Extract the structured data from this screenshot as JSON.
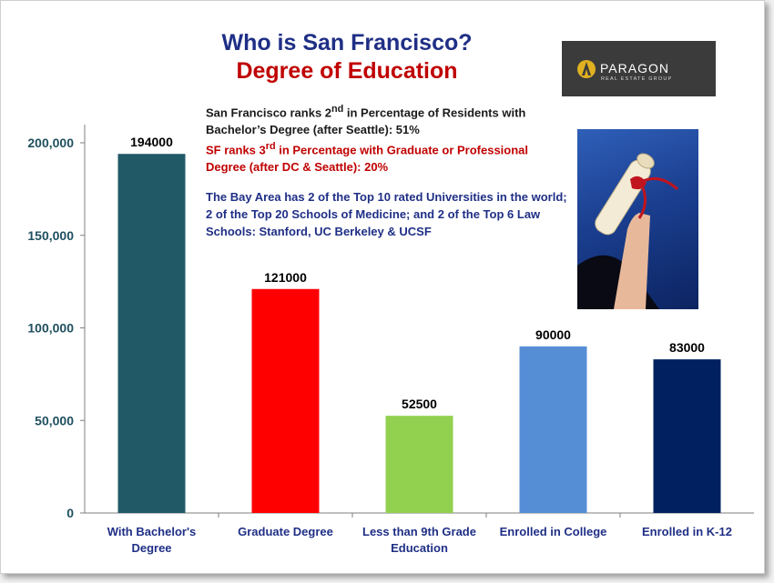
{
  "title": "Who is San Francisco?",
  "subtitle": "Degree of Education",
  "logo": {
    "name": "PARAGON",
    "tagline": "REAL ESTATE GROUP"
  },
  "notes": {
    "line1_pre": "San Francisco ranks 2",
    "line1_sup": "nd",
    "line1_post": " in Percentage of Residents with Bachelor’s Degree (after Seattle): 51%",
    "line2_pre": "SF ranks 3",
    "line2_sup": "rd",
    "line2_post": " in Percentage with Graduate or Professional Degree (after DC & Seattle): 20%",
    "line3": "The Bay Area has 2 of the Top 10 rated Universities in the world; 2 of the Top 20 Schools of Medicine; and 2 of the Top 6 Law Schools: Stanford, UC Berkeley & UCSF"
  },
  "chart_data": {
    "type": "bar",
    "categories": [
      "With Bachelor's Degree",
      "Graduate Degree",
      "Less than 9th Grade Education",
      "Enrolled in College",
      "Enrolled in K-12"
    ],
    "values": [
      194000,
      121000,
      52500,
      90000,
      83000
    ],
    "value_labels": [
      "194000",
      "121000",
      "52500",
      "90000",
      "83000"
    ],
    "colors": [
      "#215967",
      "#ff0000",
      "#92d050",
      "#558ed5",
      "#002060"
    ],
    "ylim": [
      0,
      200000
    ],
    "yticks": [
      0,
      50000,
      100000,
      150000,
      200000
    ],
    "ytick_labels": [
      "0",
      "50,000",
      "100,000",
      "150,000",
      "200,000"
    ],
    "grid": false,
    "legend": false
  }
}
